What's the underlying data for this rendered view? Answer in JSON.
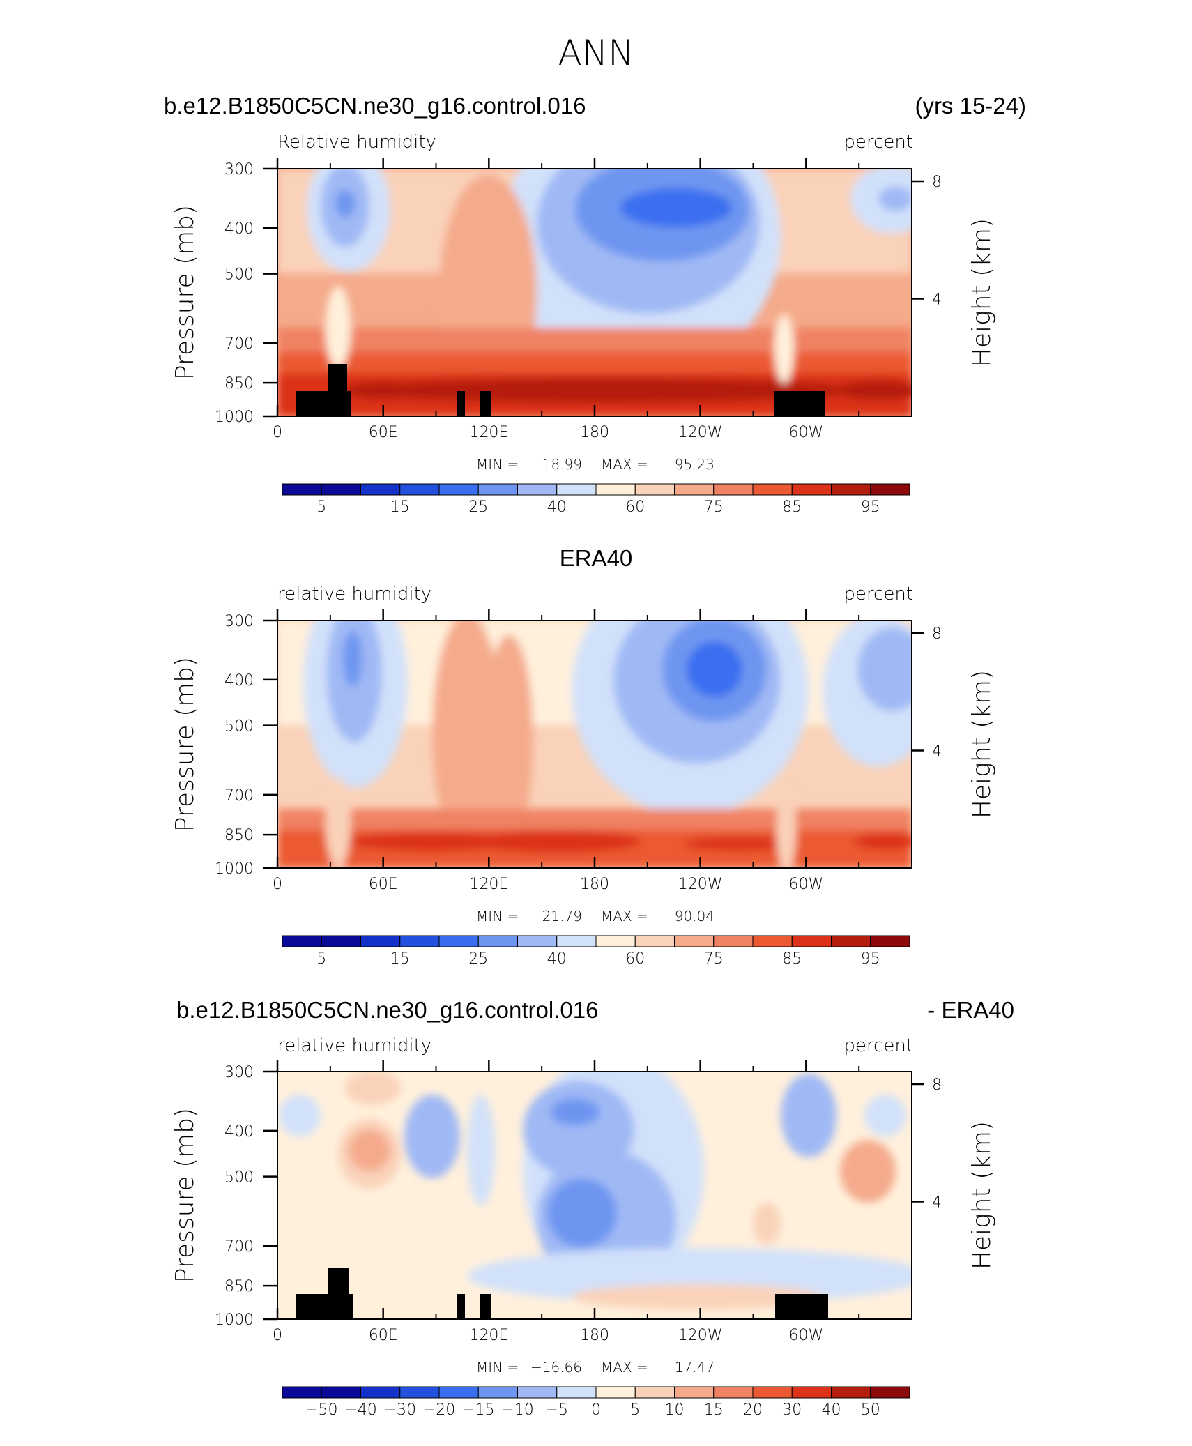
{
  "title": "ANN",
  "colors": {
    "rh": [
      "#0a0a96",
      "#1432c8",
      "#2350dc",
      "#3a6ef0",
      "#6e96f0",
      "#a0b9f5",
      "#d2e1fa",
      "#fff0dc",
      "#fad2b9",
      "#f5aa8c",
      "#f08264",
      "#eb5a32",
      "#dc3219",
      "#b41e0f",
      "#8c0a0a"
    ],
    "diff": [
      "#0a0a96",
      "#1432c8",
      "#2350dc",
      "#3a6ef0",
      "#6e96f0",
      "#a0b9f5",
      "#d2e1fa",
      "#fff0dc",
      "#fad2b9",
      "#f5aa8c",
      "#f08264",
      "#eb5a32",
      "#dc3219",
      "#b41e0f",
      "#8c0a0a"
    ],
    "land": "#000000"
  },
  "chart_data": [
    {
      "type": "heatmap",
      "header_left": "b.e12.B1850C5CN.ne30_g16.control.016",
      "header_right": "(yrs 15-24)",
      "title": "Relative humidity",
      "units": "percent",
      "ylabel": "Pressure (mb)",
      "ylabel_right": "Height (km)",
      "xticks": [
        "0",
        "60E",
        "120E",
        "180",
        "120W",
        "60W"
      ],
      "yticks": [
        "300",
        "400",
        "500",
        "700",
        "850",
        "1000"
      ],
      "height_ticks": [
        "8",
        "4"
      ],
      "min_label": "MIN =",
      "min": "18.99",
      "max_label": "MAX =",
      "max": "95.23",
      "colorbar_labels": [
        "5",
        "15",
        "25",
        "40",
        "60",
        "75",
        "85",
        "95"
      ],
      "xlim": [
        0,
        360
      ],
      "ylim": [
        1000,
        300
      ]
    },
    {
      "type": "heatmap",
      "header_center": "ERA40",
      "title": "relative humidity",
      "units": "percent",
      "ylabel": "Pressure (mb)",
      "ylabel_right": "Height (km)",
      "xticks": [
        "0",
        "60E",
        "120E",
        "180",
        "120W",
        "60W"
      ],
      "yticks": [
        "300",
        "400",
        "500",
        "700",
        "850",
        "1000"
      ],
      "height_ticks": [
        "8",
        "4"
      ],
      "min_label": "MIN =",
      "min": "21.79",
      "max_label": "MAX =",
      "max": "90.04",
      "colorbar_labels": [
        "5",
        "15",
        "25",
        "40",
        "60",
        "75",
        "85",
        "95"
      ],
      "xlim": [
        0,
        360
      ],
      "ylim": [
        1000,
        300
      ]
    },
    {
      "type": "heatmap",
      "header_left": "b.e12.B1850C5CN.ne30_g16.control.016",
      "header_right": "- ERA40",
      "title": "relative humidity",
      "units": "percent",
      "ylabel": "Pressure (mb)",
      "ylabel_right": "Height (km)",
      "xticks": [
        "0",
        "60E",
        "120E",
        "180",
        "120W",
        "60W"
      ],
      "yticks": [
        "300",
        "400",
        "500",
        "700",
        "850",
        "1000"
      ],
      "height_ticks": [
        "8",
        "4"
      ],
      "min_label": "MIN =",
      "min": "−16.66",
      "max_label": "MAX =",
      "max": "17.47",
      "colorbar_labels": [
        "−50",
        "−40",
        "−30",
        "−20",
        "−15",
        "−10",
        "−5",
        "0",
        "5",
        "10",
        "15",
        "20",
        "30",
        "40",
        "50"
      ],
      "xlim": [
        0,
        360
      ],
      "ylim": [
        1000,
        300
      ]
    }
  ]
}
